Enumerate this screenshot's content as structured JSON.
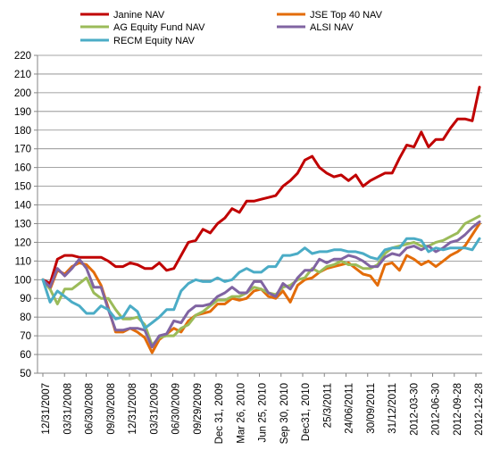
{
  "chart_data": {
    "type": "line",
    "title": "",
    "xlabel": "",
    "ylabel": "",
    "ylim": [
      50,
      220
    ],
    "y_ticks": [
      50,
      60,
      70,
      80,
      90,
      100,
      110,
      120,
      130,
      140,
      150,
      160,
      170,
      180,
      190,
      200,
      210,
      220
    ],
    "grid": "horizontal",
    "legend_position": "top",
    "x_tick_labels": [
      "12/31/2007",
      "03/31/2008",
      "06/30/2008",
      "09/30/2008",
      "12/31/2008",
      "03/31/2009",
      "06/30/2009",
      "09/29/2009",
      "Dec 31, 2009",
      "Mar 26, 2010",
      "Jun 25, 2010",
      "Sep 30, 2010",
      "Dec31, 2010",
      "25/3/2011",
      "24/06/2011",
      "30/09/2011",
      "31/12/2011",
      "2012-03-30",
      "2012-06-30",
      "2012-09-28",
      "2012-12-28"
    ],
    "series": [
      {
        "name": "Janine NAV",
        "color": "#C00000",
        "values": [
          100,
          98,
          111,
          113,
          113,
          112,
          112,
          112,
          112,
          110,
          107,
          107,
          109,
          108,
          106,
          106,
          109,
          105,
          106,
          113,
          120,
          121,
          127,
          125,
          130,
          133,
          138,
          136,
          142,
          142,
          143,
          144,
          145,
          150,
          153,
          157,
          164,
          166,
          160,
          157,
          155,
          156,
          153,
          156,
          150,
          153,
          155,
          157,
          157,
          165,
          172,
          171,
          179,
          171,
          175,
          175,
          181,
          186,
          186,
          185,
          203
        ]
      },
      {
        "name": "JSE Top 40 NAV",
        "color": "#E36C09",
        "values": [
          100,
          95,
          105,
          103,
          107,
          109,
          108,
          104,
          97,
          85,
          72,
          72,
          74,
          72,
          69,
          61,
          68,
          71,
          74,
          72,
          78,
          81,
          82,
          83,
          87,
          87,
          90,
          89,
          90,
          94,
          95,
          91,
          90,
          94,
          88,
          97,
          100,
          101,
          104,
          106,
          107,
          108,
          109,
          106,
          103,
          102,
          97,
          108,
          109,
          105,
          113,
          111,
          108,
          110,
          107,
          110,
          113,
          115,
          118,
          124,
          130
        ]
      },
      {
        "name": "AG Equity Fund NAV",
        "color": "#9BBB59",
        "values": [
          100,
          95,
          87,
          95,
          95,
          98,
          101,
          93,
          90,
          90,
          84,
          79,
          79,
          80,
          76,
          65,
          69,
          70,
          70,
          74,
          76,
          81,
          83,
          86,
          89,
          89,
          91,
          91,
          93,
          96,
          95,
          93,
          92,
          96,
          97,
          100,
          101,
          106,
          104,
          107,
          108,
          110,
          108,
          108,
          106,
          106,
          108,
          114,
          117,
          118,
          119,
          120,
          118,
          118,
          120,
          121,
          123,
          125,
          130,
          132,
          134
        ]
      },
      {
        "name": "ALSI NAV",
        "color": "#8064A2",
        "values": [
          100,
          96,
          106,
          102,
          106,
          111,
          106,
          96,
          96,
          84,
          73,
          73,
          74,
          74,
          73,
          64,
          70,
          71,
          78,
          77,
          83,
          86,
          86,
          87,
          91,
          93,
          96,
          93,
          93,
          99,
          99,
          93,
          91,
          98,
          95,
          101,
          105,
          105,
          111,
          109,
          111,
          111,
          113,
          112,
          110,
          107,
          107,
          112,
          114,
          113,
          117,
          118,
          116,
          118,
          115,
          117,
          120,
          121,
          124,
          128,
          131
        ]
      },
      {
        "name": "RECM Equity  NAV",
        "color": "#4BACC6",
        "values": [
          100,
          88,
          94,
          91,
          88,
          86,
          82,
          82,
          86,
          84,
          79,
          80,
          86,
          83,
          74,
          77,
          80,
          84,
          84,
          94,
          98,
          100,
          99,
          99,
          101,
          99,
          100,
          104,
          106,
          104,
          104,
          107,
          107,
          113,
          113,
          114,
          117,
          114,
          115,
          115,
          116,
          116,
          115,
          115,
          114,
          112,
          111,
          116,
          117,
          117,
          122,
          122,
          121,
          115,
          117,
          116,
          117,
          117,
          117,
          116,
          122
        ]
      }
    ]
  }
}
